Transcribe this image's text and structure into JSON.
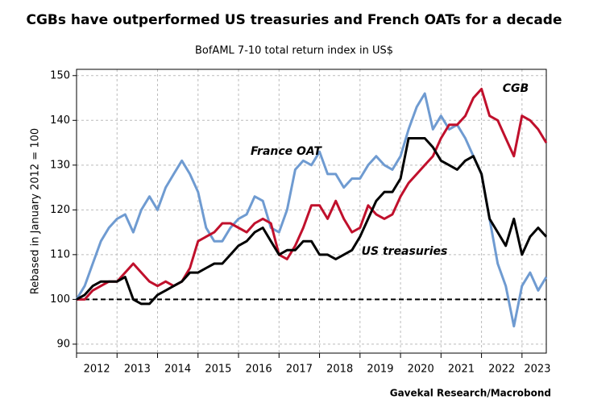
{
  "chart_data": {
    "type": "line",
    "title": "CGBs have outperformed US treasuries and French OATs for a decade",
    "subtitle": "BofAML 7-10 total return index in US$",
    "y_label": "Rebased in January 2012 = 100",
    "source": "Gavekal Research/Macrobond",
    "x": [
      2012,
      2012.2,
      2012.4,
      2012.6,
      2012.8,
      2013,
      2013.2,
      2013.4,
      2013.6,
      2013.8,
      2014,
      2014.2,
      2014.4,
      2014.6,
      2014.8,
      2015,
      2015.2,
      2015.4,
      2015.6,
      2015.8,
      2016,
      2016.2,
      2016.4,
      2016.6,
      2016.8,
      2017,
      2017.2,
      2017.4,
      2017.6,
      2017.8,
      2018,
      2018.2,
      2018.4,
      2018.6,
      2018.8,
      2019,
      2019.2,
      2019.4,
      2019.6,
      2019.8,
      2020,
      2020.2,
      2020.4,
      2020.6,
      2020.8,
      2021,
      2021.2,
      2021.4,
      2021.6,
      2021.8,
      2022,
      2022.2,
      2022.4,
      2022.6,
      2022.8,
      2023,
      2023.2,
      2023.4,
      2023.6
    ],
    "series": [
      {
        "name": "France OAT",
        "color": "#6f9bd1",
        "values": [
          100,
          103,
          108,
          113,
          116,
          118,
          119,
          115,
          120,
          123,
          120,
          125,
          128,
          131,
          128,
          124,
          116,
          113,
          113,
          116,
          118,
          119,
          123,
          122,
          116,
          115,
          120,
          129,
          131,
          130,
          133,
          128,
          128,
          125,
          127,
          127,
          130,
          132,
          130,
          129,
          132,
          138,
          143,
          146,
          138,
          141,
          138,
          139,
          136,
          132,
          128,
          118,
          108,
          103,
          94,
          103,
          106,
          102,
          105
        ]
      },
      {
        "name": "CGB",
        "color": "#c0102c",
        "values": [
          100,
          100,
          102,
          103,
          104,
          104,
          106,
          108,
          106,
          104,
          103,
          104,
          103,
          104,
          107,
          113,
          114,
          115,
          117,
          117,
          116,
          115,
          117,
          118,
          117,
          110,
          109,
          112,
          116,
          121,
          121,
          118,
          122,
          118,
          115,
          116,
          121,
          119,
          118,
          119,
          123,
          126,
          128,
          130,
          132,
          136,
          139,
          139,
          141,
          145,
          147,
          141,
          140,
          136,
          132,
          141,
          140,
          138,
          135
        ]
      },
      {
        "name": "US treasuries",
        "color": "#000000",
        "values": [
          100,
          101,
          103,
          104,
          104,
          104,
          105,
          100,
          99,
          99,
          101,
          102,
          103,
          104,
          106,
          106,
          107,
          108,
          108,
          110,
          112,
          113,
          115,
          116,
          113,
          110,
          111,
          111,
          113,
          113,
          110,
          110,
          109,
          110,
          111,
          114,
          118,
          122,
          124,
          124,
          127,
          136,
          136,
          136,
          134,
          131,
          130,
          129,
          131,
          132,
          128,
          118,
          115,
          112,
          118,
          110,
          114,
          116,
          114
        ]
      }
    ],
    "hline": 100,
    "xlim": [
      2012,
      2023.6
    ],
    "xticks": [
      2012,
      2013,
      2014,
      2015,
      2016,
      2017,
      2018,
      2019,
      2020,
      2021,
      2022,
      2023
    ],
    "ylim": [
      88,
      151.4
    ],
    "yticks": [
      90,
      100,
      110,
      120,
      130,
      140,
      150
    ],
    "grid": true
  }
}
